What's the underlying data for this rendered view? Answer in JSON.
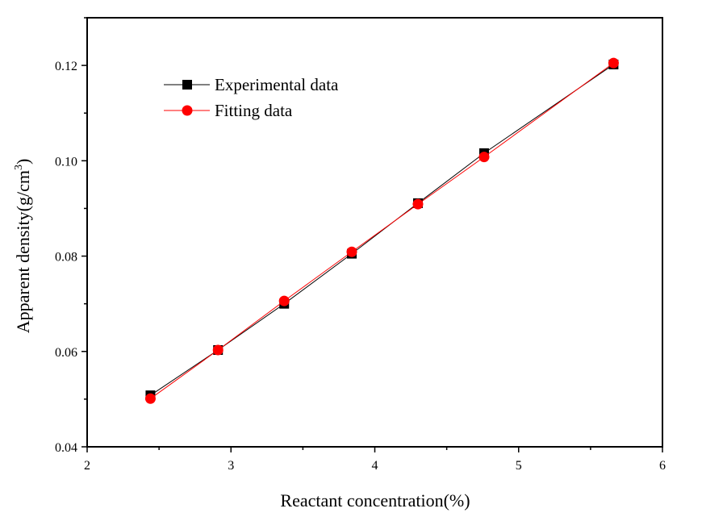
{
  "chart_data": {
    "type": "line",
    "title": "",
    "xlabel": "Reactant concentration(%)",
    "ylabel": "Apparent density(g/cm",
    "ylabel_superscript": "3",
    "ylabel_suffix": ")",
    "xlim": [
      2,
      6
    ],
    "ylim": [
      0.04,
      0.13
    ],
    "xticks": [
      "2",
      "3",
      "4",
      "5",
      "6"
    ],
    "yticks": [
      "0.04",
      "0.06",
      "0.08",
      "0.10",
      "0.12"
    ],
    "legend_position": "top-left",
    "grid": false,
    "x": [
      2.44,
      2.91,
      3.37,
      3.84,
      4.3,
      4.76,
      5.66
    ],
    "series": [
      {
        "name": "Experimental data",
        "color": "#000000",
        "marker": "square",
        "values": [
          0.0508,
          0.0603,
          0.07,
          0.0805,
          0.0911,
          0.1016,
          0.1202
        ]
      },
      {
        "name": "Fitting data",
        "color": "#ff0000",
        "marker": "circle",
        "values": [
          0.0501,
          0.0603,
          0.0706,
          0.0809,
          0.0909,
          0.1008,
          0.1205
        ]
      }
    ]
  }
}
